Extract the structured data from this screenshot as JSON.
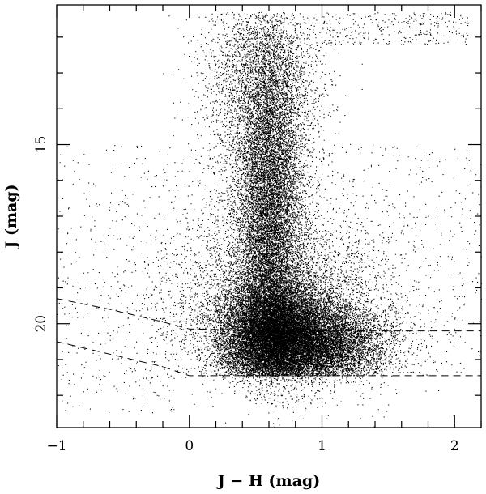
{
  "chart_data": {
    "type": "scatter",
    "title": "",
    "xlabel": "J − H (mag)",
    "ylabel": "J (mag)",
    "xlim": [
      -1.0,
      2.2
    ],
    "ylim": [
      22.9,
      11.1
    ],
    "y_inverted": true,
    "grid": false,
    "legend": "none",
    "x_ticks": [
      {
        "value": -1,
        "label": "−1"
      },
      {
        "value": 0,
        "label": "0"
      },
      {
        "value": 1,
        "label": "1"
      },
      {
        "value": 2,
        "label": "2"
      }
    ],
    "y_ticks": [
      {
        "value": 15,
        "label": "15"
      },
      {
        "value": 20,
        "label": "20"
      }
    ],
    "point_color": "#000000",
    "density_regions": [
      {
        "x_center": 0.63,
        "y_center": 20.3,
        "x_sigma": 0.2,
        "y_sigma": 0.75,
        "weight": 0.34,
        "approx_fraction": "densest clump"
      },
      {
        "x_center": 0.6,
        "y_center": 16.8,
        "x_sigma": 0.13,
        "y_sigma": 2.2,
        "weight": 0.26,
        "approx_fraction": "vertical sequence"
      },
      {
        "x_center": 0.95,
        "y_center": 20.6,
        "x_sigma": 0.27,
        "y_sigma": 0.6,
        "weight": 0.2,
        "approx_fraction": "red clump tail"
      },
      {
        "x_center": 0.7,
        "y_center": 19.4,
        "x_sigma": 0.45,
        "y_sigma": 1.4,
        "weight": 0.12,
        "approx_fraction": "broad halo"
      },
      {
        "x_center": 0.55,
        "y_center": 13.2,
        "x_sigma": 0.22,
        "y_sigma": 1.3,
        "weight": 0.08,
        "approx_fraction": "upper plume"
      }
    ],
    "sample_points": [
      {
        "x": 0.62,
        "y": 20.3
      },
      {
        "x": 0.45,
        "y": 20.8
      },
      {
        "x": 0.85,
        "y": 20.5
      },
      {
        "x": 0.58,
        "y": 17.5
      },
      {
        "x": 0.6,
        "y": 15.2
      },
      {
        "x": 1.2,
        "y": 20.9
      },
      {
        "x": 1.55,
        "y": 11.5
      },
      {
        "x": 0.9,
        "y": 11.6
      },
      {
        "x": 0.2,
        "y": 21.0
      },
      {
        "x": 1.45,
        "y": 21.5
      },
      {
        "x": -0.3,
        "y": 21.3
      },
      {
        "x": 0.7,
        "y": 22.2
      }
    ],
    "faint_plume_right": {
      "x_range": [
        1.0,
        2.1
      ],
      "y_range": [
        11.3,
        12.2
      ]
    },
    "upper_envelope": {
      "x_range": [
        0.3,
        1.5
      ],
      "y_min": 11.3
    },
    "faint_limit_cut": {
      "y": 21.45,
      "x_start": -0.1
    },
    "series": [
      {
        "style": "dashed",
        "x": [
          -1.0,
          -0.6,
          -0.2,
          0.0,
          0.5,
          1.0,
          1.5,
          2.0,
          2.2
        ],
        "y": [
          19.3,
          19.6,
          19.95,
          20.15,
          20.18,
          20.2,
          20.2,
          20.2,
          20.2
        ]
      },
      {
        "style": "dashed",
        "x": [
          -1.0,
          -0.6,
          -0.2,
          0.0,
          0.5,
          1.0,
          1.5,
          2.0,
          2.2
        ],
        "y": [
          20.5,
          20.85,
          21.2,
          21.45,
          21.45,
          21.45,
          21.45,
          21.45,
          21.45
        ]
      }
    ]
  }
}
